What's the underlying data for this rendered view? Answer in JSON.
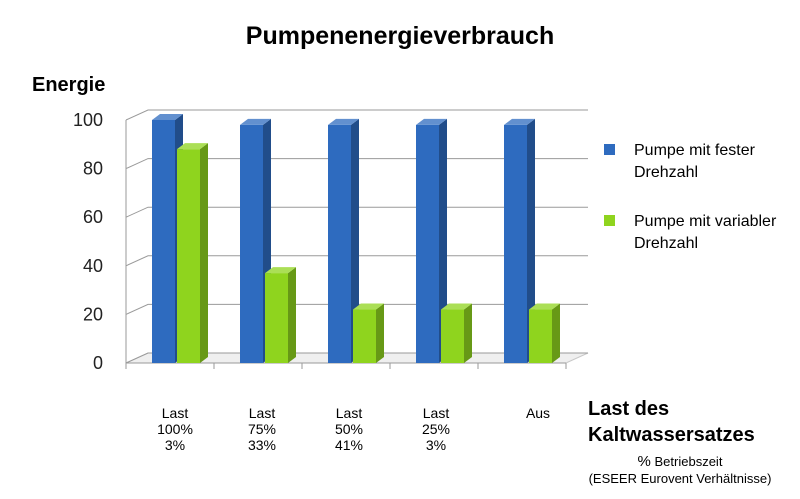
{
  "chart_data": {
    "type": "bar",
    "title": "Pumpenenergieverbrauch",
    "ylabel": "Energie",
    "xlabel_line1": "Last des",
    "xlabel_line2": "Kaltwassersatzes",
    "xnote_prefix": "%",
    "xnote_main": "Betriebszeit",
    "xnote_sub": "(ESEER Eurovent Verhältnisse)",
    "categories": [
      "Last\n100%\n3%",
      "Last\n75%\n33%",
      "Last\n50%\n41%",
      "Last\n25%\n3%",
      "Aus"
    ],
    "ylim": [
      0,
      100
    ],
    "yticks": [
      "0",
      "20",
      "40",
      "60",
      "80",
      "100"
    ],
    "grid": true,
    "legend_position": "right",
    "series": [
      {
        "name": "Pumpe mit fester Drehzahl",
        "color": "#2e6bbf",
        "values": [
          100,
          98,
          98,
          98,
          98
        ]
      },
      {
        "name": "Pumpe mit variabler Drehzahl",
        "color": "#8fd41e",
        "values": [
          88,
          37,
          22,
          22,
          22
        ]
      }
    ]
  }
}
